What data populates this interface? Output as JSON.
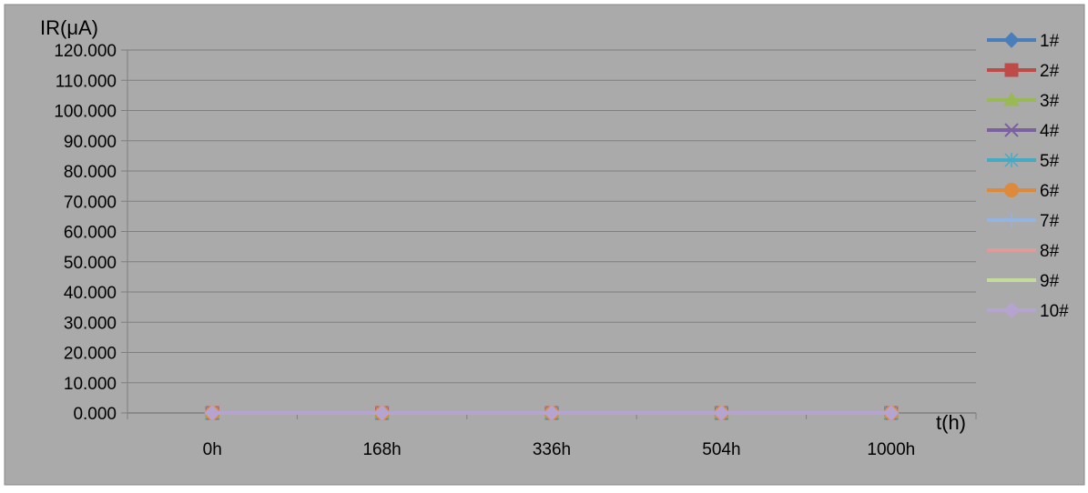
{
  "chart_data": {
    "type": "line",
    "title": "",
    "ylabel": "IR(μA)",
    "xlabel": "t(h)",
    "categories": [
      "0h",
      "168h",
      "336h",
      "504h",
      "1000h"
    ],
    "ylim": [
      0,
      120
    ],
    "yticks": [
      "0.000",
      "10.000",
      "20.000",
      "30.000",
      "40.000",
      "50.000",
      "60.000",
      "70.000",
      "80.000",
      "90.000",
      "100.000",
      "110.000",
      "120.000"
    ],
    "grid": true,
    "legend_position": "right",
    "background_color": "#aaaaaa",
    "series": [
      {
        "name": "1#",
        "color": "#4a7ebb",
        "marker": "diamond",
        "values": [
          0,
          0,
          0,
          0,
          0
        ]
      },
      {
        "name": "2#",
        "color": "#be4b48",
        "marker": "square",
        "values": [
          0,
          0,
          0,
          0,
          0
        ]
      },
      {
        "name": "3#",
        "color": "#98b954",
        "marker": "triangle",
        "values": [
          0,
          0,
          0,
          0,
          0
        ]
      },
      {
        "name": "4#",
        "color": "#7d60a0",
        "marker": "x",
        "values": [
          0,
          0,
          0,
          0,
          0
        ]
      },
      {
        "name": "5#",
        "color": "#46aac5",
        "marker": "star",
        "values": [
          0,
          0,
          0,
          0,
          0
        ]
      },
      {
        "name": "6#",
        "color": "#dd8a3c",
        "marker": "circle",
        "values": [
          0,
          0,
          0,
          0,
          0
        ]
      },
      {
        "name": "7#",
        "color": "#93b3e0",
        "marker": "plus",
        "values": [
          0,
          0,
          0,
          0,
          0
        ]
      },
      {
        "name": "8#",
        "color": "#e09b99",
        "marker": "none",
        "values": [
          0,
          0,
          0,
          0,
          0
        ]
      },
      {
        "name": "9#",
        "color": "#c3dc9b",
        "marker": "none",
        "values": [
          0,
          0,
          0,
          0,
          0
        ]
      },
      {
        "name": "10#",
        "color": "#b6a4d0",
        "marker": "diamond",
        "values": [
          0,
          0,
          0,
          0,
          0
        ]
      }
    ]
  }
}
